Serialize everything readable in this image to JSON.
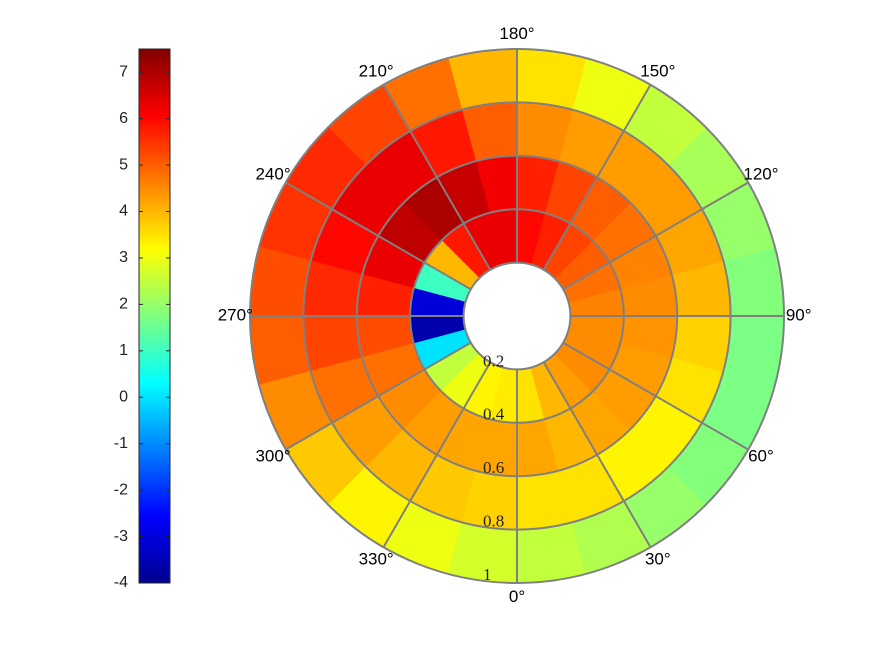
{
  "chart_data": {
    "type": "polar_heatmap",
    "colormap": "jet",
    "clim": [
      -4,
      7.5
    ],
    "colorbar_ticks": [
      -4,
      -3,
      -2,
      -1,
      0,
      1,
      2,
      3,
      4,
      5,
      6,
      7
    ],
    "rlim": [
      0,
      1
    ],
    "rticks": [
      0.2,
      0.4,
      0.6,
      0.8,
      1
    ],
    "thetaticks": [
      {
        "value": 0,
        "label": "0°"
      },
      {
        "value": 30,
        "label": "30°"
      },
      {
        "value": 60,
        "label": "60°"
      },
      {
        "value": 90,
        "label": "90°"
      },
      {
        "value": 120,
        "label": "120°"
      },
      {
        "value": 150,
        "label": "150°"
      },
      {
        "value": 180,
        "label": "180°"
      },
      {
        "value": 210,
        "label": "210°"
      },
      {
        "value": 240,
        "label": "240°"
      },
      {
        "value": 270,
        "label": "270°"
      },
      {
        "value": 300,
        "label": "300°"
      },
      {
        "value": 330,
        "label": "330°"
      }
    ],
    "grid_color": "#808080",
    "theta_bins": [
      0,
      15,
      30,
      45,
      60,
      75,
      90,
      105,
      120,
      135,
      150,
      165,
      180,
      195,
      210,
      225,
      240,
      255,
      270,
      285,
      300,
      315,
      330,
      345,
      360
    ],
    "r_bins": [
      0.2,
      0.4,
      0.6,
      0.8,
      1
    ],
    "values": [
      [
        3.5,
        4.2,
        3.5,
        2.5
      ],
      [
        4,
        4,
        3.5,
        2.3
      ],
      [
        4.3,
        4.2,
        3.3,
        2
      ],
      [
        4.5,
        4.3,
        3.3,
        1.8
      ],
      [
        4.5,
        4.3,
        3.5,
        1.7
      ],
      [
        4.5,
        4.4,
        3.7,
        1.7
      ],
      [
        4.6,
        4.5,
        4,
        1.8
      ],
      [
        4.8,
        4.6,
        4.2,
        2
      ],
      [
        5,
        4.8,
        4.3,
        2.2
      ],
      [
        5.3,
        5,
        4.3,
        2.5
      ],
      [
        5.7,
        5.3,
        4.3,
        3
      ],
      [
        6,
        5.7,
        4.5,
        3.5
      ],
      [
        6.3,
        6.2,
        5,
        4
      ],
      [
        6.3,
        6.7,
        5.8,
        4.8
      ],
      [
        5.8,
        7,
        6.3,
        5.3
      ],
      [
        4,
        6.8,
        6.3,
        5.6
      ],
      [
        1,
        6.3,
        6,
        5.5
      ],
      [
        -3,
        5.7,
        5.6,
        5.2
      ],
      [
        -3.5,
        5.2,
        5.3,
        5
      ],
      [
        0,
        4.8,
        4.8,
        4.5
      ],
      [
        2.5,
        4.5,
        4.3,
        3.8
      ],
      [
        3,
        4.3,
        4,
        3.3
      ],
      [
        3.3,
        4.2,
        3.8,
        3
      ],
      [
        3.4,
        4.2,
        3.7,
        2.7
      ]
    ]
  }
}
